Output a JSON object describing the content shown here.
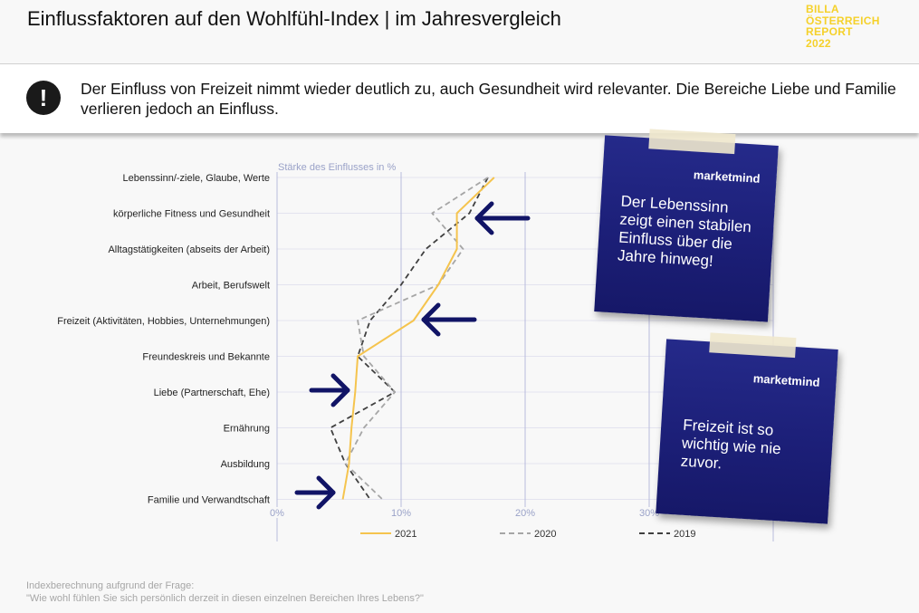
{
  "title": "Einflussfaktoren auf den Wohlfühl-Index | im Jahresvergleich",
  "logo": {
    "lines": [
      "BILLA",
      "ÖSTERREICH",
      "REPORT",
      "2022"
    ]
  },
  "callout": {
    "icon": "exclamation-icon",
    "text": "Der Einfluss von Freizeit nimmt wieder deutlich zu, auch Gesundheit wird relevanter. Die Bereiche Liebe und Familie verlieren jedoch an Einfluss."
  },
  "chart_data": {
    "type": "line",
    "orientation": "horizontal",
    "axis_title": "Stärke des Einflusses in %",
    "categories": [
      "Lebenssinn/-ziele, Glaube, Werte",
      "körperliche Fitness und Gesundheit",
      "Alltagstätigkeiten (abseits der Arbeit)",
      "Arbeit, Berufswelt",
      "Freizeit (Aktivitäten, Hobbies, Unternehmungen)",
      "Freundeskreis und Bekannte",
      "Liebe (Partnerschaft, Ehe)",
      "Ernährung",
      "Ausbildung",
      "Familie und Verwandtschaft"
    ],
    "x_ticks": [
      "0%",
      "10%",
      "20%",
      "30%"
    ],
    "xlim": [
      0,
      40
    ],
    "series": [
      {
        "name": "2021",
        "color": "#f5c44e",
        "dash": "solid",
        "values": [
          17.5,
          14.5,
          14.5,
          13.0,
          11.0,
          6.5,
          6.3,
          6.0,
          5.8,
          5.3
        ]
      },
      {
        "name": "2020",
        "color": "#a6a6a6",
        "dash": "dashed",
        "values": [
          17.0,
          12.5,
          15.0,
          13.0,
          6.5,
          7.0,
          9.5,
          7.0,
          5.5,
          8.5
        ]
      },
      {
        "name": "2019",
        "color": "#404040",
        "dash": "dashed",
        "values": [
          17.0,
          15.5,
          12.0,
          10.0,
          7.5,
          6.5,
          9.5,
          4.3,
          5.5,
          7.5
        ]
      }
    ],
    "grid": true,
    "legend_position": "bottom"
  },
  "annotations": {
    "arrow_color": "#111466",
    "notes": [
      {
        "brand": "marketmind",
        "text": "Der Lebenssinn zeigt einen stabilen Einfluss über die Jahre hinweg!"
      },
      {
        "brand": "marketmind",
        "text": "Freizeit ist so wichtig wie nie zuvor."
      }
    ]
  },
  "footnote": {
    "line1": "Indexberechnung aufgrund der Frage:",
    "line2": "\"Wie wohl fühlen Sie sich persönlich derzeit in diesen einzelnen Bereichen Ihres Lebens?\""
  }
}
